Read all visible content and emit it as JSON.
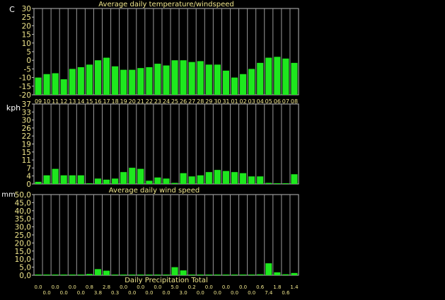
{
  "chart_data": [
    {
      "type": "bar",
      "title": "Average daily temperature/windspeed",
      "ylabel": "C",
      "ylim": [
        -20,
        30
      ],
      "ytick_labels": [
        "30",
        "25",
        "20",
        "15",
        "10",
        "5",
        "0",
        "-5",
        "-10",
        "-15",
        "-20"
      ],
      "categories": [
        "09",
        "10",
        "11",
        "12",
        "13",
        "14",
        "15",
        "16",
        "17",
        "18",
        "19",
        "20",
        "21",
        "22",
        "23",
        "24",
        "25",
        "26",
        "27",
        "28",
        "29",
        "30",
        "31",
        "01",
        "02",
        "03",
        "04",
        "05",
        "06",
        "07",
        "08"
      ],
      "values": [
        -10,
        -8,
        -7.5,
        -11,
        -5,
        -4,
        -2.5,
        0,
        1.5,
        -3.5,
        -5.5,
        -5.5,
        -4.5,
        -4,
        -2,
        -3,
        0,
        0,
        -1,
        -0.5,
        -2.5,
        -2.5,
        -6,
        -10,
        -8,
        -5,
        -1.5,
        1.5,
        2,
        1,
        -1.5
      ],
      "grid": "vertical",
      "color": "#1ee81e"
    },
    {
      "type": "bar",
      "title": "Average daily wind speed",
      "ylabel": "kph",
      "ylim": [
        0,
        37
      ],
      "ytick_labels": [
        "37",
        "33",
        "30",
        "26",
        "22",
        "19",
        "15",
        "11",
        "7",
        "4",
        "0"
      ],
      "values": [
        1,
        4,
        7,
        4,
        4,
        4,
        0.3,
        2.5,
        2,
        2.5,
        5.5,
        7.5,
        7,
        1.5,
        3,
        2.5,
        0.5,
        5,
        3.5,
        4,
        5.5,
        6.5,
        6,
        5.5,
        5,
        3.5,
        3.5,
        0.5,
        0.3,
        0.3,
        4.5
      ],
      "grid": "vertical",
      "color": "#1ee81e"
    },
    {
      "type": "bar",
      "title": "Daily Precipitation Total",
      "ylabel": "mm",
      "ylim": [
        0,
        50
      ],
      "ytick_labels": [
        "50,0",
        "45,0",
        "40,0",
        "35,0",
        "30,0",
        "25,0",
        "20,0",
        "15,0",
        "10,0",
        "5,0",
        "0,0"
      ],
      "values": [
        0.0,
        0.0,
        0.0,
        0.0,
        0.0,
        0.0,
        0.8,
        3.8,
        2.8,
        0.3,
        0.0,
        0.0,
        0.0,
        0.0,
        0.0,
        0.0,
        5.0,
        3.0,
        0.2,
        0.0,
        0.0,
        0.0,
        0.0,
        0.0,
        0.0,
        0.0,
        0.6,
        7.4,
        1.8,
        0.6,
        1.4
      ],
      "value_labels": [
        "0.0",
        "0.0",
        "0.0",
        "0.0",
        "0.0",
        "0.0",
        "0.8",
        "3.8",
        "2.8",
        "0.3",
        "0.0",
        "0.0",
        "0.0",
        "0.0",
        "0.0",
        "0.0",
        "5.0",
        "3.0",
        "0.2",
        "0.0",
        "0.0",
        "0.0",
        "0.0",
        "0.0",
        "0.0",
        "0.0",
        "0.6",
        "7.4",
        "1.8",
        "0.6",
        "1.4"
      ],
      "grid": "vertical",
      "color": "#1ee81e"
    }
  ],
  "colors": {
    "background": "#000000",
    "bar": "#1ee81e",
    "title_text": "#f0e68c",
    "tick_text": "#f0e68c",
    "label_text": "#ffffff",
    "axis": "#bdbdbd"
  }
}
